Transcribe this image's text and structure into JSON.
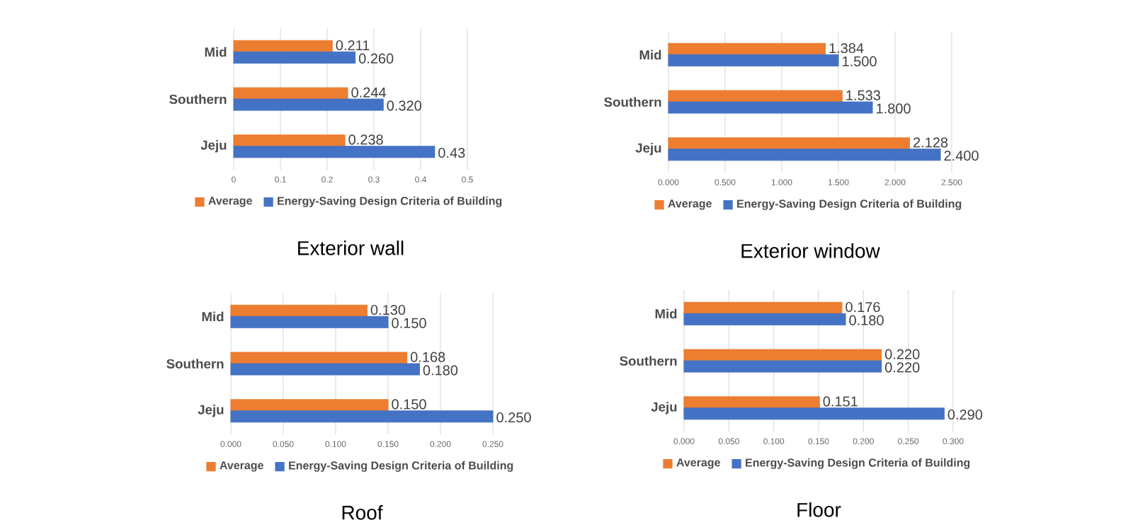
{
  "chart_data": [
    {
      "type": "bar",
      "orientation": "horizontal",
      "title": "Exterior wall",
      "categories": [
        "Mid",
        "Southern",
        "Jeju"
      ],
      "series": [
        {
          "name": "Average",
          "color": "#ed7d31",
          "values": [
            0.211,
            0.244,
            0.238
          ],
          "value_labels": [
            "0.211",
            "0.244",
            "0.238"
          ]
        },
        {
          "name": "Energy-Saving Design Criteria of Building",
          "color": "#4472c4",
          "values": [
            0.26,
            0.32,
            0.43
          ],
          "value_labels": [
            "0.260",
            "0.320",
            "0.43"
          ]
        }
      ],
      "xlim": [
        0,
        0.5
      ],
      "xticks": [
        0,
        0.1,
        0.2,
        0.3,
        0.4,
        0.5
      ],
      "grid": "x",
      "legend": "bottom"
    },
    {
      "type": "bar",
      "orientation": "horizontal",
      "title": "Exterior window",
      "categories": [
        "Mid",
        "Southern",
        "Jeju"
      ],
      "series": [
        {
          "name": "Average",
          "color": "#ed7d31",
          "values": [
            1.384,
            1.533,
            2.128
          ],
          "value_labels": [
            "1.384",
            "1.533",
            "2.128"
          ]
        },
        {
          "name": "Energy-Saving Design Criteria of Building",
          "color": "#4472c4",
          "values": [
            1.5,
            1.8,
            2.4
          ],
          "value_labels": [
            "1.500",
            "1.800",
            "2.400"
          ]
        }
      ],
      "xlim": [
        0,
        2.5
      ],
      "xticks": [
        {
          "value": 0,
          "label": "0.000"
        },
        {
          "value": 0.5,
          "label": "0.500"
        },
        {
          "value": 1,
          "label": "1.000"
        },
        {
          "value": 1.5,
          "label": "1.500"
        },
        {
          "value": 2,
          "label": "2.000"
        },
        {
          "value": 2.5,
          "label": "2.500"
        }
      ],
      "grid": "x",
      "legend": "bottom"
    },
    {
      "type": "bar",
      "orientation": "horizontal",
      "title": "Roof",
      "categories": [
        "Mid",
        "Southern",
        "Jeju"
      ],
      "series": [
        {
          "name": "Average",
          "color": "#ed7d31",
          "values": [
            0.13,
            0.168,
            0.15
          ],
          "value_labels": [
            "0.130",
            "0.168",
            "0.150"
          ]
        },
        {
          "name": "Energy-Saving Design Criteria of Building",
          "color": "#4472c4",
          "values": [
            0.15,
            0.18,
            0.25
          ],
          "value_labels": [
            "0.150",
            "0.180",
            "0.250"
          ]
        }
      ],
      "xlim": [
        0,
        0.25
      ],
      "xticks": [
        {
          "value": 0,
          "label": "0.000"
        },
        {
          "value": 0.05,
          "label": "0.050"
        },
        {
          "value": 0.1,
          "label": "0.100"
        },
        {
          "value": 0.15,
          "label": "0.150"
        },
        {
          "value": 0.2,
          "label": "0.200"
        },
        {
          "value": 0.25,
          "label": "0.250"
        }
      ],
      "grid": "x",
      "legend": "bottom"
    },
    {
      "type": "bar",
      "orientation": "horizontal",
      "title": "Floor",
      "categories": [
        "Mid",
        "Southern",
        "Jeju"
      ],
      "series": [
        {
          "name": "Average",
          "color": "#ed7d31",
          "values": [
            0.176,
            0.22,
            0.151
          ],
          "value_labels": [
            "0.176",
            "0.220",
            "0.151"
          ]
        },
        {
          "name": "Energy-Saving Design Criteria of Building",
          "color": "#4472c4",
          "values": [
            0.18,
            0.22,
            0.29
          ],
          "value_labels": [
            "0.180",
            "0.220",
            "0.290"
          ]
        }
      ],
      "xlim": [
        0,
        0.3
      ],
      "xticks": [
        {
          "value": 0,
          "label": "0.000"
        },
        {
          "value": 0.05,
          "label": "0.050"
        },
        {
          "value": 0.1,
          "label": "0.100"
        },
        {
          "value": 0.15,
          "label": "0.150"
        },
        {
          "value": 0.2,
          "label": "0.200"
        },
        {
          "value": 0.25,
          "label": "0.250"
        },
        {
          "value": 0.3,
          "label": "0.300"
        }
      ],
      "grid": "x",
      "legend": "bottom"
    }
  ]
}
